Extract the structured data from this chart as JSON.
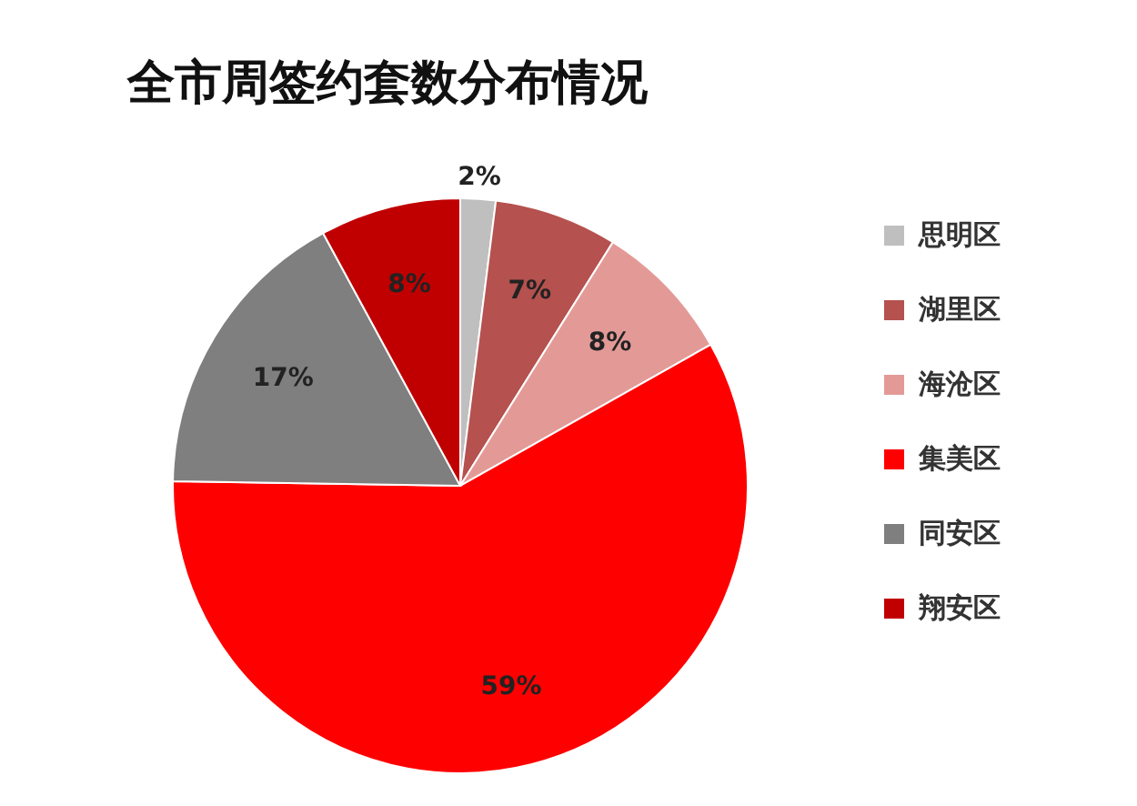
{
  "chart_data": {
    "type": "pie",
    "title": "全市周签约套数分布情况",
    "categories": [
      "思明区",
      "湖里区",
      "海沧区",
      "集美区",
      "同安区",
      "翔安区"
    ],
    "values": [
      2,
      7,
      8,
      59,
      17,
      8
    ],
    "value_labels": [
      "2%",
      "7%",
      "8%",
      "59%",
      "17%",
      "8%"
    ],
    "colors": [
      "#bfbfbf",
      "#b5514e",
      "#e39a97",
      "#ff0000",
      "#7f7f7f",
      "#c00000"
    ],
    "legend": "right"
  }
}
